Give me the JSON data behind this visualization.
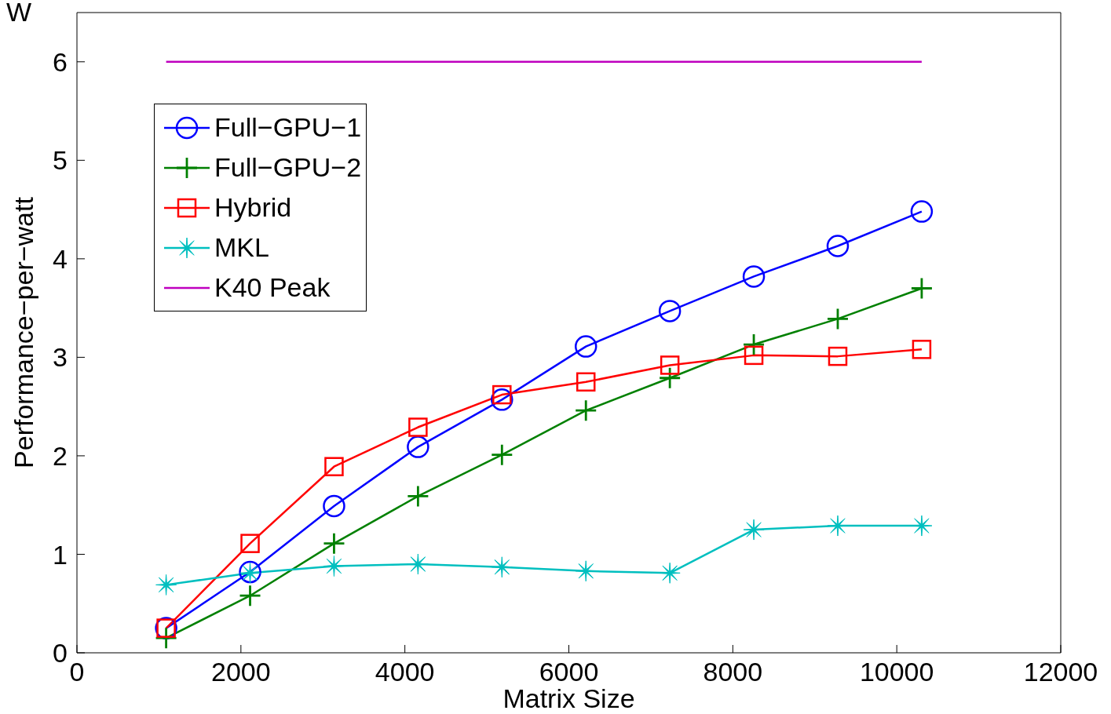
{
  "chart_data": {
    "type": "line",
    "xlabel": "Matrix Size",
    "ylabel": "Performance−per−watt",
    "annotations": [
      "W"
    ],
    "x": [
      1088,
      2112,
      3136,
      4160,
      5184,
      6208,
      7232,
      8256,
      9280,
      10304
    ],
    "series": [
      {
        "name": "Full−GPU−1",
        "color": "#0000ff",
        "marker": "circle",
        "values": [
          0.25,
          0.82,
          1.49,
          2.09,
          2.57,
          3.11,
          3.47,
          3.82,
          4.13,
          4.48
        ]
      },
      {
        "name": "Full−GPU−2",
        "color": "#008000",
        "marker": "cross",
        "values": [
          0.15,
          0.58,
          1.11,
          1.59,
          2.01,
          2.46,
          2.79,
          3.13,
          3.39,
          3.7
        ]
      },
      {
        "name": "Hybrid",
        "color": "#ff0000",
        "marker": "square",
        "values": [
          0.25,
          1.11,
          1.89,
          2.29,
          2.62,
          2.75,
          2.92,
          3.02,
          3.01,
          3.08
        ]
      },
      {
        "name": "MKL",
        "color": "#00bfbf",
        "marker": "star",
        "values": [
          0.69,
          0.81,
          0.88,
          0.9,
          0.87,
          0.83,
          0.81,
          1.25,
          1.29,
          1.29
        ]
      },
      {
        "name": "K40 Peak",
        "color": "#bf00bf",
        "marker": "none",
        "x": [
          1088,
          10304
        ],
        "values": [
          6,
          6
        ]
      }
    ],
    "xlim": [
      0,
      12000
    ],
    "xticks": [
      0,
      2000,
      4000,
      6000,
      8000,
      10000,
      12000
    ],
    "ylim": [
      0,
      6.5
    ],
    "yticks": [
      0,
      1,
      2,
      3,
      4,
      5,
      6
    ],
    "grid": false,
    "legend": "top left",
    "line_style": "solid"
  }
}
